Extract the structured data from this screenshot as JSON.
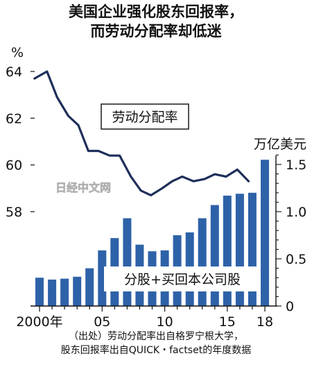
{
  "title_line1": "美国企业强化股东回报率，",
  "title_line2": "而劳动分配率却低迷",
  "watermark": "日经中文网",
  "note_line1": "（出处）劳动分配率出自格罗宁根大学，",
  "note_line2": "股东回报率出自QUICK・factset的年度数据",
  "chart_data": {
    "type": "bar+line",
    "x": [
      2000,
      2001,
      2002,
      2003,
      2004,
      2005,
      2006,
      2007,
      2008,
      2009,
      2010,
      2011,
      2012,
      2013,
      2014,
      2015,
      2016,
      2017,
      2018
    ],
    "x_tick_labels": [
      "2000年",
      "05",
      "10",
      "15",
      "18"
    ],
    "x_tick_values": [
      2000,
      2005,
      2010,
      2015,
      2018
    ],
    "left_axis": {
      "unit": "%",
      "ticks": [
        58,
        60,
        62,
        64
      ],
      "ylim": [
        54,
        65
      ]
    },
    "right_axis": {
      "unit": "万亿美元",
      "ticks": [
        "0",
        "0.5",
        "1.0",
        "1.5"
      ],
      "tick_values": [
        0,
        0.5,
        1.0,
        1.5
      ],
      "ylim": [
        0,
        1.65
      ]
    },
    "series": [
      {
        "name": "劳动分配率",
        "type": "line",
        "axis": "left",
        "color": "#1e2f5a",
        "x": [
          1999.6,
          2000.6,
          2001.4,
          2002.3,
          2003.1,
          2003.9,
          2004.7,
          2005.6,
          2006.4,
          2007.3,
          2008.1,
          2008.9,
          2009.8,
          2010.6,
          2011.4,
          2012.3,
          2013.2,
          2014.0,
          2014.9,
          2015.8,
          2016.7
        ],
        "values": [
          63.7,
          64.0,
          62.9,
          62.1,
          61.7,
          60.6,
          60.6,
          60.4,
          60.4,
          59.5,
          58.9,
          58.7,
          59.0,
          59.3,
          59.5,
          59.3,
          59.4,
          59.6,
          59.5,
          59.8,
          59.3
        ]
      },
      {
        "name": "分股+买回本公司股",
        "type": "bar",
        "axis": "right",
        "color": "#2e62a8",
        "values": [
          0.3,
          0.28,
          0.29,
          0.31,
          0.4,
          0.59,
          0.72,
          0.93,
          0.65,
          0.58,
          0.59,
          0.75,
          0.78,
          0.93,
          1.07,
          1.17,
          1.19,
          1.2,
          1.55
        ]
      }
    ]
  }
}
